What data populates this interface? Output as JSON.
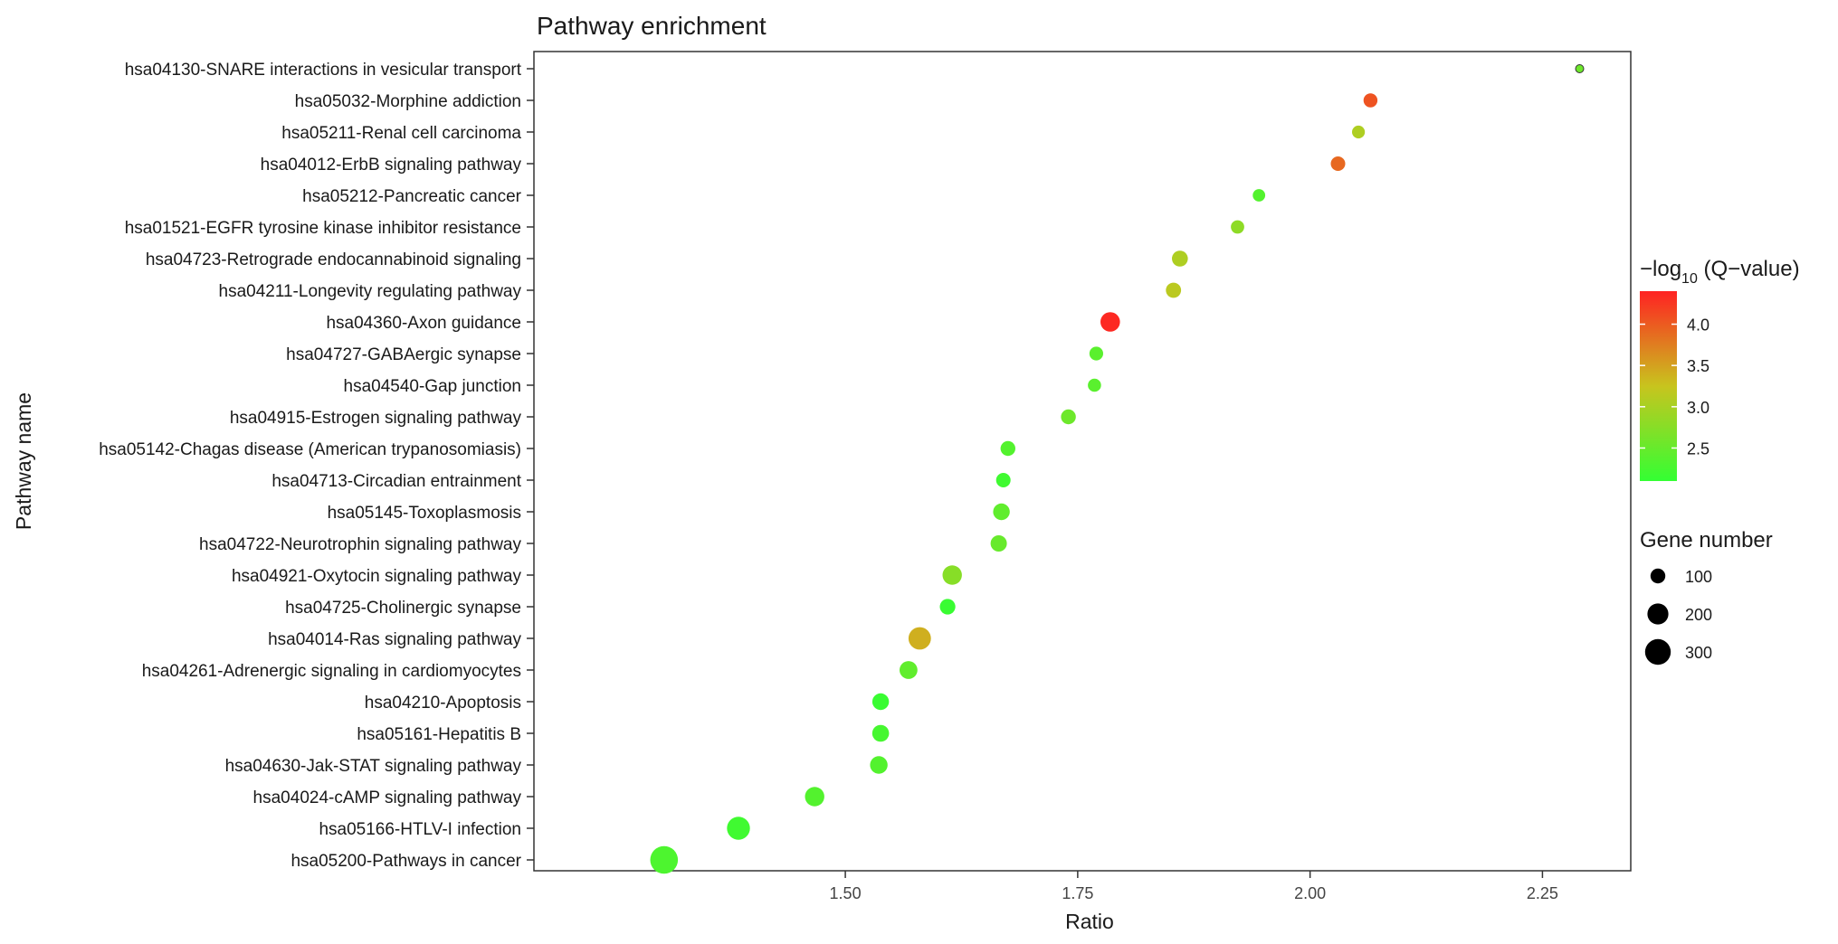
{
  "chart_data": {
    "type": "scatter",
    "title": "Pathway enrichment",
    "xlabel": "Ratio",
    "ylabel": "Pathway name",
    "xlim": [
      1.165,
      2.345
    ],
    "xticks": [
      1.5,
      1.75,
      2.0,
      2.25
    ],
    "xtick_labels": [
      "1.50",
      "1.75",
      "2.00",
      "2.25"
    ],
    "grid": false,
    "categories": [
      "hsa04130-SNARE interactions in vesicular transport",
      "hsa05032-Morphine addiction",
      "hsa05211-Renal cell carcinoma",
      "hsa04012-ErbB signaling pathway",
      "hsa05212-Pancreatic cancer",
      "hsa01521-EGFR tyrosine kinase inhibitor resistance",
      "hsa04723-Retrograde endocannabinoid signaling",
      "hsa04211-Longevity regulating pathway",
      "hsa04360-Axon guidance",
      "hsa04727-GABAergic synapse",
      "hsa04540-Gap junction",
      "hsa04915-Estrogen signaling pathway",
      "hsa05142-Chagas disease (American trypanosomiasis)",
      "hsa04713-Circadian entrainment",
      "hsa05145-Toxoplasmosis",
      "hsa04722-Neurotrophin signaling pathway",
      "hsa04921-Oxytocin signaling pathway",
      "hsa04725-Cholinergic synapse",
      "hsa04014-Ras signaling pathway",
      "hsa04261-Adrenergic signaling in cardiomyocytes",
      "hsa04210-Apoptosis",
      "hsa05161-Hepatitis B",
      "hsa04630-Jak-STAT signaling pathway",
      "hsa04024-cAMP signaling pathway",
      "hsa05166-HTLV-I infection",
      "hsa05200-Pathways in cancer"
    ],
    "points": [
      {
        "ratio": 2.29,
        "neg_log10_q": 2.55,
        "genes": 30
      },
      {
        "ratio": 2.065,
        "neg_log10_q": 4.05,
        "genes": 88
      },
      {
        "ratio": 2.052,
        "neg_log10_q": 3.05,
        "genes": 75
      },
      {
        "ratio": 2.03,
        "neg_log10_q": 3.9,
        "genes": 95
      },
      {
        "ratio": 1.945,
        "neg_log10_q": 2.35,
        "genes": 70
      },
      {
        "ratio": 1.922,
        "neg_log10_q": 2.8,
        "genes": 82
      },
      {
        "ratio": 1.86,
        "neg_log10_q": 3.05,
        "genes": 115
      },
      {
        "ratio": 1.853,
        "neg_log10_q": 3.15,
        "genes": 105
      },
      {
        "ratio": 1.785,
        "neg_log10_q": 4.35,
        "genes": 175
      },
      {
        "ratio": 1.77,
        "neg_log10_q": 2.4,
        "genes": 85
      },
      {
        "ratio": 1.768,
        "neg_log10_q": 2.4,
        "genes": 80
      },
      {
        "ratio": 1.74,
        "neg_log10_q": 2.55,
        "genes": 100
      },
      {
        "ratio": 1.675,
        "neg_log10_q": 2.35,
        "genes": 100
      },
      {
        "ratio": 1.67,
        "neg_log10_q": 2.2,
        "genes": 95
      },
      {
        "ratio": 1.668,
        "neg_log10_q": 2.45,
        "genes": 125
      },
      {
        "ratio": 1.665,
        "neg_log10_q": 2.5,
        "genes": 120
      },
      {
        "ratio": 1.615,
        "neg_log10_q": 2.75,
        "genes": 170
      },
      {
        "ratio": 1.61,
        "neg_log10_q": 2.15,
        "genes": 110
      },
      {
        "ratio": 1.58,
        "neg_log10_q": 3.4,
        "genes": 230
      },
      {
        "ratio": 1.568,
        "neg_log10_q": 2.45,
        "genes": 145
      },
      {
        "ratio": 1.538,
        "neg_log10_q": 2.15,
        "genes": 125
      },
      {
        "ratio": 1.538,
        "neg_log10_q": 2.25,
        "genes": 130
      },
      {
        "ratio": 1.536,
        "neg_log10_q": 2.35,
        "genes": 140
      },
      {
        "ratio": 1.467,
        "neg_log10_q": 2.35,
        "genes": 170
      },
      {
        "ratio": 1.385,
        "neg_log10_q": 2.2,
        "genes": 240
      },
      {
        "ratio": 1.305,
        "neg_log10_q": 2.3,
        "genes": 350
      }
    ],
    "color_legend": {
      "title": "−log10 (Q−value)",
      "title_prefix": "−log",
      "title_sub": "10",
      "title_suffix": " (Q−value)",
      "min": 2.1,
      "max": 4.4,
      "ticks": [
        4.0,
        3.5,
        3.0,
        2.5
      ],
      "tick_labels": [
        "4.0",
        "3.5",
        "3.0",
        "2.5"
      ],
      "low_color": "#33ff33",
      "high_color": "#ff2222"
    },
    "size_legend": {
      "title": "Gene number",
      "values": [
        100,
        200,
        300
      ],
      "labels": [
        "100",
        "200",
        "300"
      ]
    },
    "legend_position": "right"
  }
}
